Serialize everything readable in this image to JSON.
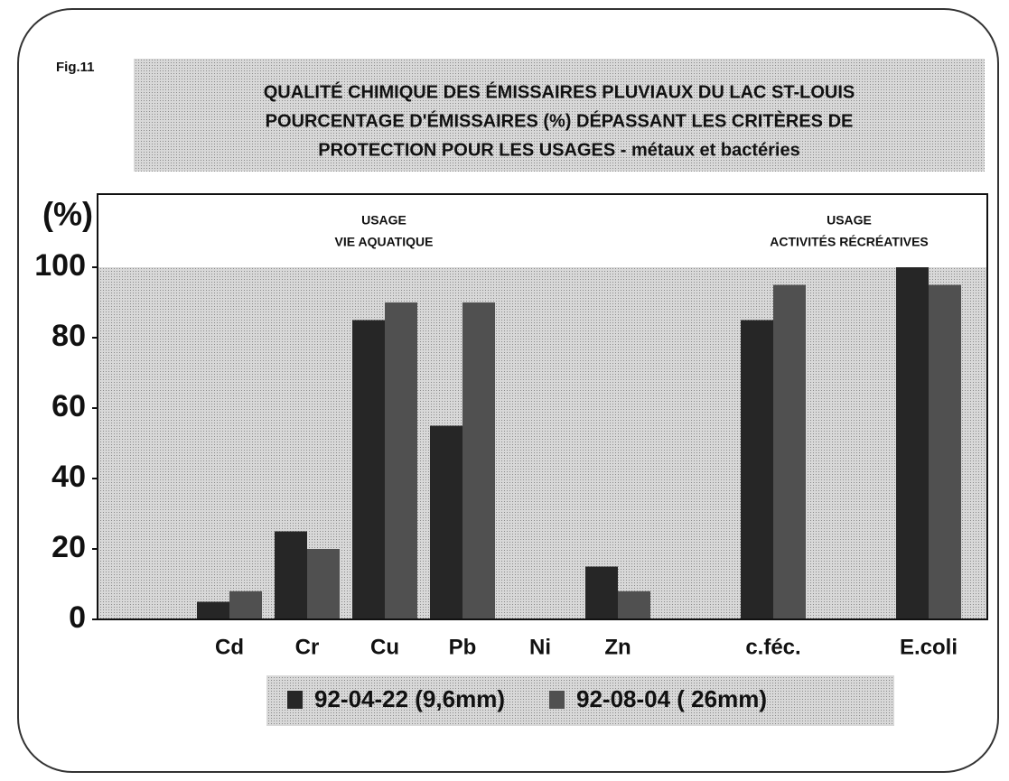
{
  "chart_data": {
    "type": "bar",
    "figure_label": "Fig.11",
    "title": [
      "QUALITÉ CHIMIQUE DES ÉMISSAIRES PLUVIAUX DU LAC ST-LOUIS",
      "POURCENTAGE D'ÉMISSAIRES  (%)  DÉPASSANT LES CRITÈRES DE",
      "PROTECTION POUR LES USAGES  -  métaux et bactéries"
    ],
    "y_label": "(%)",
    "annotations": [
      [
        "USAGE",
        "VIE AQUATIQUE"
      ],
      [
        "USAGE",
        "ACTIVITÉS RÉCRÉATIVES"
      ]
    ],
    "categories": [
      null,
      "Cd",
      "Cr",
      "Cu",
      "Pb",
      "Ni",
      "Zn",
      null,
      "c.féc.",
      null,
      "E.coli"
    ],
    "series": [
      {
        "name": "92-04-22 (9,6mm)",
        "color": "#262626",
        "values": [
          null,
          5,
          25,
          85,
          55,
          0,
          15,
          null,
          85,
          null,
          100
        ]
      },
      {
        "name": "92-08-04 ( 26mm)",
        "color": "#505050",
        "values": [
          null,
          8,
          20,
          90,
          90,
          0,
          8,
          null,
          95,
          null,
          95
        ]
      }
    ],
    "ylim": [
      0,
      100
    ],
    "yticks": [
      0,
      20,
      40,
      60,
      80,
      100
    ]
  }
}
